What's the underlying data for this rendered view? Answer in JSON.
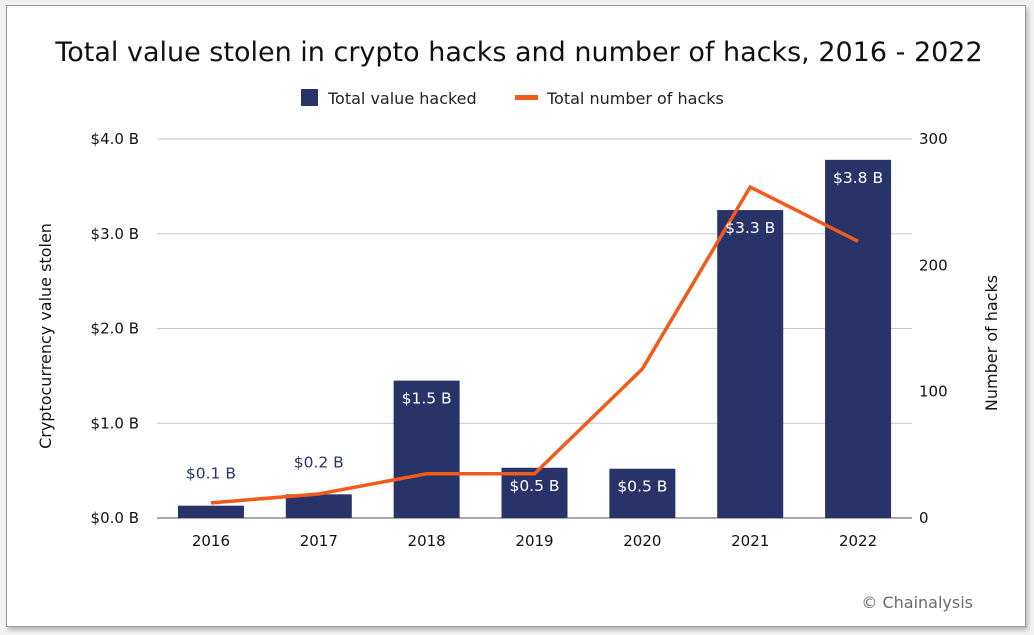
{
  "chart_data": {
    "type": "bar",
    "title": "Total value stolen in crypto hacks and number of hacks, 2016 - 2022",
    "categories": [
      "2016",
      "2017",
      "2018",
      "2019",
      "2020",
      "2021",
      "2022"
    ],
    "series": [
      {
        "name": "Total value hacked",
        "type": "bar",
        "axis": "left",
        "color": "#283469",
        "values": [
          0.13,
          0.25,
          1.45,
          0.53,
          0.52,
          3.25,
          3.78
        ],
        "labels": [
          "$0.1 B",
          "$0.2 B",
          "$1.5 B",
          "$0.5 B",
          "$0.5 B",
          "$3.3 B",
          "$3.8 B"
        ]
      },
      {
        "name": "Total number of hacks",
        "type": "line",
        "axis": "right",
        "color": "#f05a1a",
        "values": [
          12,
          19,
          35,
          35,
          118,
          262,
          219
        ]
      }
    ],
    "ylabel": "Cryptocurrency value stolen",
    "ylabel_right": "Number of hacks",
    "ylim": [
      0,
      4
    ],
    "ylim_right": [
      0,
      300
    ],
    "y_ticks": [
      "$0.0 B",
      "$1.0 B",
      "$2.0 B",
      "$3.0 B",
      "$4.0 B"
    ],
    "y_right_ticks": [
      "0",
      "100",
      "200",
      "300"
    ],
    "grid": true,
    "legend_position": "top-center"
  },
  "credit": "© Chainalysis",
  "colors": {
    "bar": "#283469",
    "line": "#f05a1a",
    "label_dark": "#283469",
    "label_light": "#ffffff",
    "grid": "#c8c8c8"
  }
}
